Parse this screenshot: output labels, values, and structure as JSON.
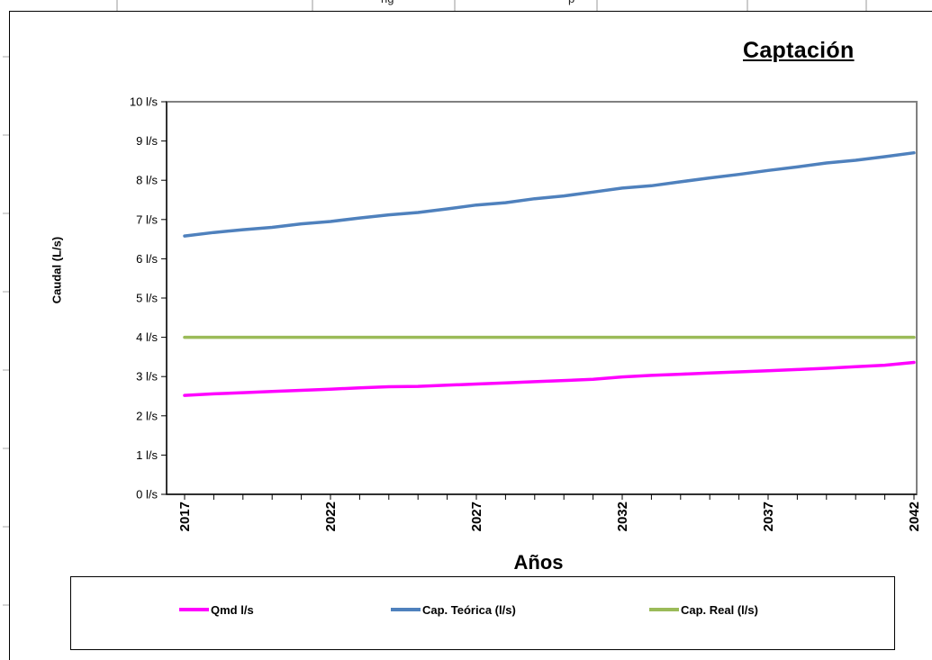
{
  "header": {
    "cut_text_left": "ng",
    "cut_text_right": "p"
  },
  "chart_data": {
    "type": "line",
    "title": "Captación",
    "xlabel": "Años",
    "ylabel": "Caudal (L/s)",
    "x": [
      2017,
      2018,
      2019,
      2020,
      2021,
      2022,
      2023,
      2024,
      2025,
      2026,
      2027,
      2028,
      2029,
      2030,
      2031,
      2032,
      2033,
      2034,
      2035,
      2036,
      2037,
      2038,
      2039,
      2040,
      2041,
      2042
    ],
    "x_tick_labels": [
      "2017",
      "2022",
      "2027",
      "2032",
      "2037",
      "2042"
    ],
    "y_tick_labels": [
      "0 l/s",
      "1 l/s",
      "2 l/s",
      "3 l/s",
      "4 l/s",
      "5 l/s",
      "6 l/s",
      "7 l/s",
      "8 l/s",
      "9 l/s",
      "10 l/s"
    ],
    "ylim": [
      0,
      10
    ],
    "grid": false,
    "legend_position": "bottom",
    "series": [
      {
        "name": "Qmd l/s",
        "color": "#ff00ff",
        "values": [
          2.52,
          2.56,
          2.59,
          2.62,
          2.65,
          2.68,
          2.71,
          2.74,
          2.75,
          2.78,
          2.81,
          2.84,
          2.87,
          2.9,
          2.93,
          2.99,
          3.03,
          3.06,
          3.09,
          3.12,
          3.15,
          3.18,
          3.21,
          3.25,
          3.29,
          3.36
        ]
      },
      {
        "name": "Cap. Teórica (l/s)",
        "color": "#4f81bd",
        "values": [
          6.58,
          6.67,
          6.74,
          6.8,
          6.89,
          6.95,
          7.04,
          7.12,
          7.18,
          7.27,
          7.37,
          7.43,
          7.53,
          7.6,
          7.7,
          7.8,
          7.86,
          7.96,
          8.06,
          8.15,
          8.25,
          8.34,
          8.44,
          8.51,
          8.6,
          8.7
        ]
      },
      {
        "name": "Cap. Real (l/s)",
        "color": "#9bbb59",
        "values": [
          4,
          4,
          4,
          4,
          4,
          4,
          4,
          4,
          4,
          4,
          4,
          4,
          4,
          4,
          4,
          4,
          4,
          4,
          4,
          4,
          4,
          4,
          4,
          4,
          4,
          4
        ]
      }
    ]
  }
}
